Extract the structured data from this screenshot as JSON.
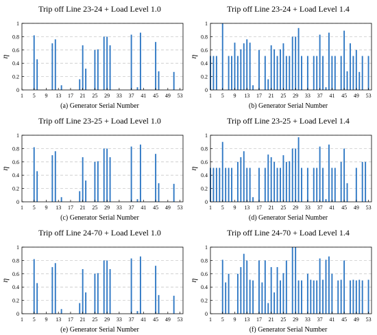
{
  "chart_data": [
    {
      "type": "bar",
      "title": "Trip off Line 23-24 + Load Level 1.0",
      "caption": "(a) Generator Serial Number",
      "ylabel": "η",
      "xlim": [
        1,
        54
      ],
      "ylim": [
        0,
        1
      ],
      "xticks": [
        1,
        5,
        9,
        13,
        17,
        21,
        25,
        29,
        33,
        37,
        41,
        45,
        49,
        53
      ],
      "yticks": [
        0,
        0.2,
        0.4,
        0.6,
        0.8,
        1
      ],
      "ytick_labels": [
        "0",
        "0.2",
        "0.4",
        "0.6",
        "0.8",
        "1"
      ],
      "grid": "horizontal-dashed",
      "x": [
        5,
        6,
        11,
        12,
        14,
        20,
        21,
        22,
        25,
        26,
        28,
        29,
        30,
        37,
        39,
        40,
        45,
        46,
        51
      ],
      "values": [
        0.82,
        0.46,
        0.7,
        0.76,
        0.07,
        0.16,
        0.67,
        0.32,
        0.6,
        0.61,
        0.8,
        0.8,
        0.67,
        0.83,
        0.04,
        0.86,
        0.72,
        0.28,
        0.27
      ]
    },
    {
      "type": "bar",
      "title": "Trip off Line 23-24 + Load Level 1.4",
      "caption": "(b) Generator Serial Number",
      "ylabel": "η",
      "xlim": [
        1,
        54
      ],
      "ylim": [
        0,
        1
      ],
      "xticks": [
        1,
        5,
        9,
        13,
        17,
        21,
        25,
        29,
        33,
        37,
        41,
        45,
        49,
        53
      ],
      "yticks": [
        0,
        0.2,
        0.4,
        0.6,
        0.8,
        1
      ],
      "ytick_labels": [
        "0",
        "0.2",
        "0.4",
        "0.6",
        "0.8",
        "1"
      ],
      "grid": "horizontal-dashed",
      "x": [
        1,
        2,
        3,
        5,
        7,
        8,
        9,
        10,
        11,
        12,
        13,
        14,
        15,
        17,
        19,
        20,
        21,
        22,
        23,
        24,
        25,
        26,
        27,
        28,
        29,
        30,
        31,
        33,
        35,
        36,
        37,
        38,
        39,
        40,
        41,
        42,
        44,
        45,
        46,
        47,
        48,
        49,
        50,
        51,
        53
      ],
      "values": [
        0.51,
        0.51,
        0.51,
        1.0,
        0.51,
        0.51,
        0.71,
        0.51,
        0.61,
        0.7,
        0.76,
        0.71,
        0.07,
        0.6,
        0.51,
        0.16,
        0.67,
        0.61,
        0.51,
        0.61,
        0.7,
        0.51,
        0.51,
        0.8,
        0.8,
        0.93,
        0.51,
        0.51,
        0.51,
        0.51,
        0.83,
        0.51,
        0.04,
        0.86,
        0.51,
        0.51,
        0.51,
        0.89,
        0.28,
        0.7,
        0.51,
        0.6,
        0.27,
        0.51,
        0.51
      ]
    },
    {
      "type": "bar",
      "title": "Trip off Line 23-25 + Load Level 1.0",
      "caption": "(c) Generator Serial Number",
      "ylabel": "η",
      "xlim": [
        1,
        54
      ],
      "ylim": [
        0,
        1
      ],
      "xticks": [
        1,
        5,
        9,
        13,
        17,
        21,
        25,
        29,
        33,
        37,
        41,
        45,
        49,
        53
      ],
      "yticks": [
        0,
        0.2,
        0.4,
        0.6,
        0.8,
        1
      ],
      "ytick_labels": [
        "0",
        "0.2",
        "0.4",
        "0.6",
        "0.8",
        "1"
      ],
      "grid": "horizontal-dashed",
      "x": [
        5,
        6,
        11,
        12,
        14,
        20,
        21,
        22,
        25,
        26,
        28,
        29,
        30,
        37,
        39,
        40,
        45,
        46,
        51
      ],
      "values": [
        0.82,
        0.46,
        0.7,
        0.76,
        0.07,
        0.16,
        0.67,
        0.32,
        0.6,
        0.61,
        0.8,
        0.8,
        0.67,
        0.83,
        0.04,
        0.86,
        0.72,
        0.28,
        0.27
      ]
    },
    {
      "type": "bar",
      "title": "Trip off Line 23-25 + Load Level 1.4",
      "caption": "(d) Generator Serial Number",
      "ylabel": "η",
      "xlim": [
        1,
        54
      ],
      "ylim": [
        0,
        1
      ],
      "xticks": [
        1,
        5,
        9,
        13,
        17,
        21,
        25,
        29,
        33,
        37,
        41,
        45,
        49,
        53
      ],
      "yticks": [
        0,
        0.2,
        0.4,
        0.6,
        0.8,
        1
      ],
      "ytick_labels": [
        "0",
        "0.2",
        "0.4",
        "0.6",
        "0.8",
        "1"
      ],
      "grid": "horizontal-dashed",
      "x": [
        1,
        2,
        3,
        4,
        5,
        6,
        7,
        8,
        10,
        11,
        12,
        13,
        14,
        15,
        17,
        19,
        20,
        21,
        22,
        23,
        24,
        25,
        26,
        27,
        28,
        29,
        30,
        31,
        33,
        35,
        36,
        37,
        38,
        39,
        40,
        41,
        42,
        44,
        45,
        46,
        49,
        51,
        52
      ],
      "values": [
        0.51,
        0.51,
        0.51,
        0.51,
        0.9,
        0.51,
        0.51,
        0.51,
        0.6,
        0.67,
        0.76,
        0.51,
        0.51,
        0.07,
        0.51,
        0.51,
        0.71,
        0.67,
        0.6,
        0.51,
        0.51,
        0.7,
        0.6,
        0.61,
        0.8,
        0.8,
        0.97,
        0.51,
        0.51,
        0.51,
        0.51,
        0.83,
        0.51,
        0.04,
        0.86,
        0.51,
        0.51,
        0.6,
        0.8,
        0.28,
        0.51,
        0.6,
        0.6
      ]
    },
    {
      "type": "bar",
      "title": "Trip off Line 24-70 + Load Level 1.0",
      "caption": "(e) Generator Serial Number",
      "ylabel": "η",
      "xlim": [
        1,
        54
      ],
      "ylim": [
        0,
        1
      ],
      "xticks": [
        1,
        5,
        9,
        13,
        17,
        21,
        25,
        29,
        33,
        37,
        41,
        45,
        49,
        53
      ],
      "yticks": [
        0,
        0.2,
        0.4,
        0.6,
        0.8,
        1
      ],
      "ytick_labels": [
        "0",
        "0.2",
        "0.4",
        "0.6",
        "0.8",
        "1"
      ],
      "grid": "horizontal-dashed",
      "x": [
        5,
        6,
        11,
        12,
        14,
        20,
        21,
        22,
        25,
        26,
        28,
        29,
        30,
        37,
        39,
        40,
        45,
        46,
        51
      ],
      "values": [
        0.82,
        0.46,
        0.7,
        0.76,
        0.07,
        0.16,
        0.67,
        0.32,
        0.6,
        0.61,
        0.8,
        0.8,
        0.67,
        0.83,
        0.04,
        0.86,
        0.72,
        0.28,
        0.27
      ]
    },
    {
      "type": "bar",
      "title": "Trip off Line 24-70 + Load Level 1.4",
      "caption": "(f) Generator Serial Number",
      "ylabel": "η",
      "xlim": [
        1,
        54
      ],
      "ylim": [
        0,
        1
      ],
      "xticks": [
        1,
        5,
        9,
        13,
        17,
        21,
        25,
        29,
        33,
        37,
        41,
        45,
        49,
        53
      ],
      "yticks": [
        0,
        0.2,
        0.4,
        0.6,
        0.8,
        1
      ],
      "ytick_labels": [
        "0",
        "0.2",
        "0.4",
        "0.6",
        "0.8",
        "1"
      ],
      "grid": "horizontal-dashed",
      "x": [
        5,
        6,
        7,
        10,
        11,
        12,
        13,
        14,
        15,
        17,
        18,
        19,
        20,
        21,
        22,
        23,
        24,
        25,
        26,
        28,
        29,
        30,
        31,
        33,
        34,
        35,
        36,
        37,
        38,
        39,
        40,
        41,
        43,
        44,
        45,
        47,
        48,
        49,
        50,
        51,
        53
      ],
      "values": [
        0.81,
        0.47,
        0.6,
        0.6,
        0.7,
        0.9,
        0.8,
        0.51,
        0.5,
        0.8,
        0.47,
        0.8,
        0.16,
        0.7,
        0.32,
        0.7,
        0.5,
        0.61,
        0.8,
        1.0,
        1.0,
        0.5,
        0.5,
        0.6,
        0.51,
        0.5,
        0.5,
        0.83,
        0.51,
        0.81,
        0.86,
        0.6,
        0.5,
        0.51,
        0.8,
        0.5,
        0.51,
        0.5,
        0.51,
        0.5,
        0.51
      ]
    }
  ]
}
